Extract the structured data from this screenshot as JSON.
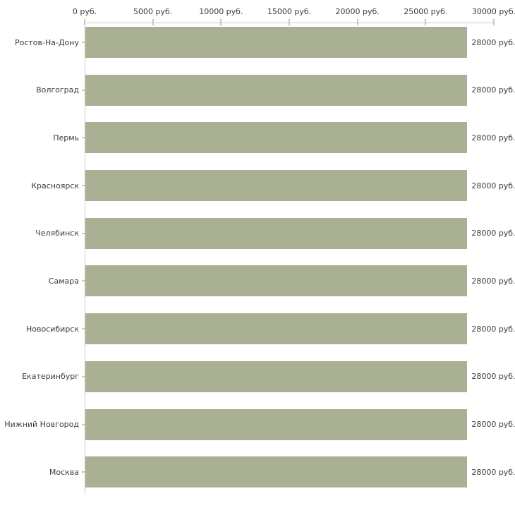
{
  "chart_data": {
    "type": "bar",
    "orientation": "horizontal",
    "title": "",
    "categories": [
      "Ростов-На-Дону",
      "Волгоград",
      "Пермь",
      "Красноярск",
      "Челябинск",
      "Самара",
      "Новосибирск",
      "Екатеринбург",
      "Нижний Новгород",
      "Москва"
    ],
    "values": [
      28000,
      28000,
      28000,
      28000,
      28000,
      28000,
      28000,
      28000,
      28000,
      28000
    ],
    "bar_labels": [
      "28000 руб.",
      "28000 руб.",
      "28000 руб.",
      "28000 руб.",
      "28000 руб.",
      "28000 руб.",
      "28000 руб.",
      "28000 руб.",
      "28000 руб.",
      "28000 руб."
    ],
    "x_axis": {
      "position": "top",
      "min": 0,
      "max": 30000,
      "tick_labels": [
        "0 руб.",
        "5000 руб.",
        "10000 руб.",
        "15000 руб.",
        "20000 руб.",
        "25000 руб.",
        "30000 руб."
      ]
    },
    "legend": "none",
    "grid": "off",
    "colors": {
      "bar": "#aab094",
      "axis_line": "#c9c9c9",
      "tick_mark": "#c7caa8",
      "text": "#3c3c3c",
      "background": "#ffffff"
    }
  }
}
